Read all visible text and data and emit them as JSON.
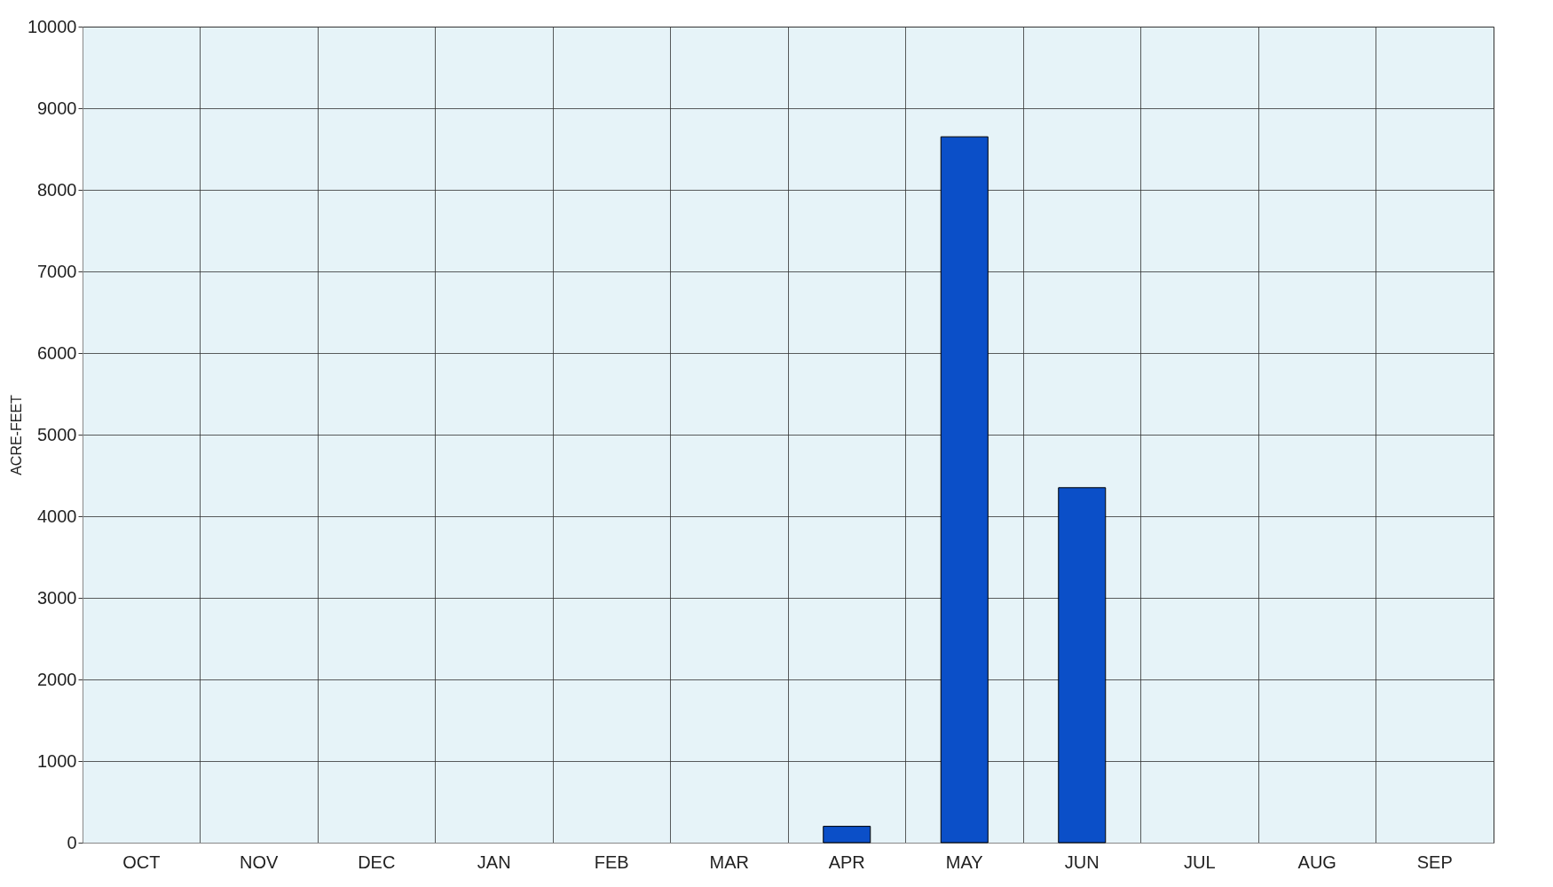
{
  "chart_data": {
    "type": "bar",
    "ylabel": "ACRE-FEET",
    "categories": [
      "OCT",
      "NOV",
      "DEC",
      "JAN",
      "FEB",
      "MAR",
      "APR",
      "MAY",
      "JUN",
      "JUL",
      "AUG",
      "SEP"
    ],
    "values": [
      0,
      0,
      0,
      0,
      0,
      0,
      200,
      8650,
      4350,
      0,
      0,
      0
    ],
    "color": "#0b4fc8",
    "ylim": [
      0,
      10000
    ],
    "yticks": [
      0,
      1000,
      2000,
      3000,
      4000,
      5000,
      6000,
      7000,
      8000,
      9000,
      10000
    ],
    "grid": true
  }
}
